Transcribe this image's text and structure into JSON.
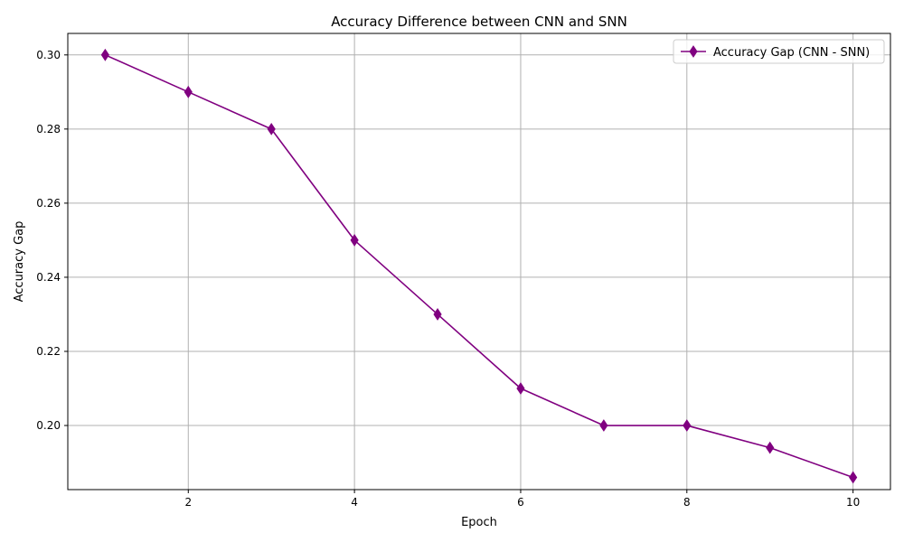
{
  "chart_data": {
    "type": "line",
    "title": "Accuracy Difference between CNN and SNN",
    "xlabel": "Epoch",
    "ylabel": "Accuracy Gap",
    "xlim": [
      0.55,
      10.45
    ],
    "ylim": [
      0.1827,
      0.3058
    ],
    "xticks": [
      2,
      4,
      6,
      8,
      10
    ],
    "xtick_labels": [
      "2",
      "4",
      "6",
      "8",
      "10"
    ],
    "yticks": [
      0.2,
      0.22,
      0.24,
      0.26,
      0.28,
      0.3
    ],
    "ytick_labels": [
      "0.20",
      "0.22",
      "0.24",
      "0.26",
      "0.28",
      "0.30"
    ],
    "grid": true,
    "legend_position": "top-right",
    "series": [
      {
        "name": "Accuracy Gap (CNN - SNN)",
        "color": "#800080",
        "marker": "thin-diamond",
        "x": [
          1,
          2,
          3,
          4,
          5,
          6,
          7,
          8,
          9,
          10
        ],
        "y": [
          0.3,
          0.29,
          0.28,
          0.25,
          0.23,
          0.21,
          0.2,
          0.2,
          0.194,
          0.186
        ]
      }
    ]
  }
}
